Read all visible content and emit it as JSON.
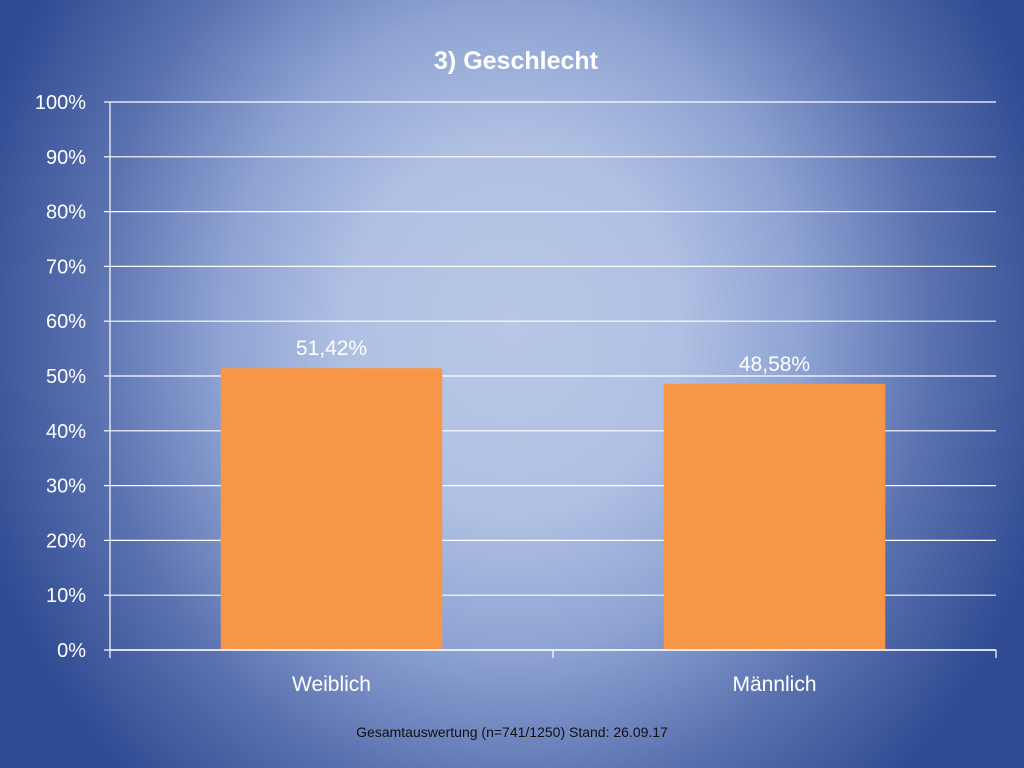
{
  "colors": {
    "bar": "#f79646",
    "grid": "#ffffff",
    "text": "#ffffff"
  },
  "chart_data": {
    "type": "bar",
    "title": "3) Geschlecht",
    "categories": [
      "Weiblich",
      "Männlich"
    ],
    "values": [
      51.42,
      48.58
    ],
    "data_labels": [
      "51,42%",
      "48,58%"
    ],
    "ylim": [
      0,
      100
    ],
    "yticks": [
      0,
      10,
      20,
      30,
      40,
      50,
      60,
      70,
      80,
      90,
      100
    ],
    "ytick_labels": [
      "0%",
      "10%",
      "20%",
      "30%",
      "40%",
      "50%",
      "60%",
      "70%",
      "80%",
      "90%",
      "100%"
    ],
    "xlabel": "",
    "ylabel": "",
    "grid": true,
    "legend": "none"
  },
  "footer": {
    "note": "Gesamtauswertung (n=741/1250) Stand: 26.09.17"
  }
}
